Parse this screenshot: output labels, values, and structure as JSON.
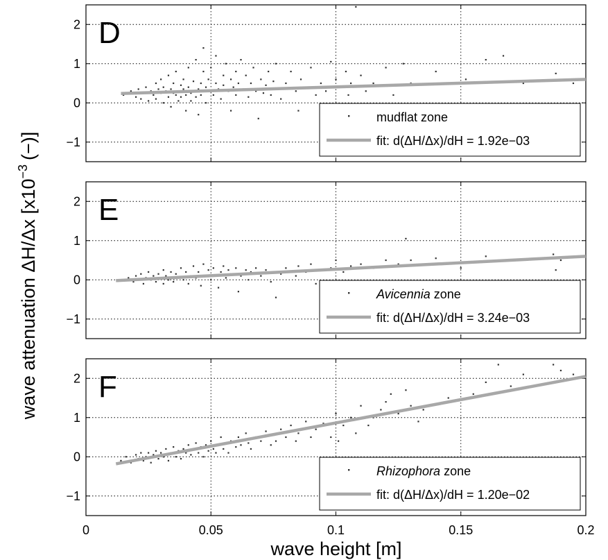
{
  "figure": {
    "ylabel": "wave attenuation  ΔH/Δx [x10",
    "ylabel_exp": "−3",
    "ylabel_unit": "(−)]",
    "xlabel": "wave height [m]"
  },
  "colors": {
    "points": "#303030",
    "fit": "#a8a8a8",
    "grid": "#000000",
    "axes": "#000000"
  },
  "chart_data": [
    {
      "type": "scatter",
      "panel_label": "D",
      "xlim": [
        0,
        0.2
      ],
      "ylim": [
        -1.5,
        2.5
      ],
      "xticks": [
        "0",
        "0.05",
        "0.1",
        "0.15",
        "0.2"
      ],
      "yticks": [
        "2",
        "1",
        "0",
        "−1"
      ],
      "grid": true,
      "legend_position": "bottom-right",
      "series": [
        {
          "name": "mudflat zone",
          "italic_part": "",
          "rest": "mudflat zone",
          "kind": "points"
        },
        {
          "name": "fit: d(ΔH/Δx)/dH = 1.92e−03",
          "kind": "line",
          "x": [
            0.014,
            0.2
          ],
          "y": [
            0.24,
            0.6
          ]
        }
      ],
      "points": [
        [
          0.015,
          0.2
        ],
        [
          0.018,
          0.3
        ],
        [
          0.02,
          0.15
        ],
        [
          0.021,
          0.35
        ],
        [
          0.022,
          0.1
        ],
        [
          0.023,
          0.25
        ],
        [
          0.024,
          0.4
        ],
        [
          0.025,
          0.05
        ],
        [
          0.026,
          0.3
        ],
        [
          0.027,
          0.2
        ],
        [
          0.028,
          0.5
        ],
        [
          0.028,
          0.1
        ],
        [
          0.029,
          0.35
        ],
        [
          0.03,
          0.25
        ],
        [
          0.03,
          0.6
        ],
        [
          0.031,
          0.0
        ],
        [
          0.031,
          0.4
        ],
        [
          0.032,
          0.3
        ],
        [
          0.033,
          0.15
        ],
        [
          0.033,
          0.7
        ],
        [
          0.034,
          0.35
        ],
        [
          0.034,
          -0.1
        ],
        [
          0.035,
          0.25
        ],
        [
          0.035,
          0.5
        ],
        [
          0.036,
          0.2
        ],
        [
          0.036,
          0.8
        ],
        [
          0.037,
          0.3
        ],
        [
          0.037,
          0.05
        ],
        [
          0.038,
          0.45
        ],
        [
          0.038,
          0.15
        ],
        [
          0.039,
          0.35
        ],
        [
          0.039,
          0.6
        ],
        [
          0.04,
          0.2
        ],
        [
          0.04,
          -0.2
        ],
        [
          0.041,
          0.4
        ],
        [
          0.041,
          0.9
        ],
        [
          0.042,
          0.25
        ],
        [
          0.042,
          0.05
        ],
        [
          0.043,
          0.55
        ],
        [
          0.043,
          0.3
        ],
        [
          0.044,
          0.15
        ],
        [
          0.044,
          1.1
        ],
        [
          0.045,
          0.35
        ],
        [
          0.045,
          -0.3
        ],
        [
          0.046,
          0.5
        ],
        [
          0.046,
          0.2
        ],
        [
          0.047,
          1.4
        ],
        [
          0.047,
          0.8
        ],
        [
          0.048,
          0.4
        ],
        [
          0.048,
          0.0
        ],
        [
          0.049,
          0.6
        ],
        [
          0.05,
          0.3
        ],
        [
          0.05,
          0.9
        ],
        [
          0.051,
          0.2
        ],
        [
          0.052,
          1.2
        ],
        [
          0.052,
          0.5
        ],
        [
          0.053,
          0.35
        ],
        [
          0.054,
          0.1
        ],
        [
          0.055,
          0.7
        ],
        [
          0.055,
          0.45
        ],
        [
          0.056,
          1.0
        ],
        [
          0.057,
          0.3
        ],
        [
          0.058,
          0.6
        ],
        [
          0.058,
          -0.2
        ],
        [
          0.059,
          0.4
        ],
        [
          0.06,
          0.8
        ],
        [
          0.06,
          0.2
        ],
        [
          0.061,
          0.5
        ],
        [
          0.062,
          1.1
        ],
        [
          0.063,
          0.35
        ],
        [
          0.064,
          0.7
        ],
        [
          0.065,
          0.15
        ],
        [
          0.066,
          0.5
        ],
        [
          0.067,
          0.9
        ],
        [
          0.068,
          0.3
        ],
        [
          0.069,
          -0.4
        ],
        [
          0.07,
          0.6
        ],
        [
          0.071,
          0.25
        ],
        [
          0.072,
          0.45
        ],
        [
          0.073,
          0.8
        ],
        [
          0.074,
          0.2
        ],
        [
          0.075,
          0.55
        ],
        [
          0.076,
          1.0
        ],
        [
          0.077,
          0.35
        ],
        [
          0.078,
          0.1
        ],
        [
          0.08,
          0.5
        ],
        [
          0.082,
          0.8
        ],
        [
          0.084,
          0.3
        ],
        [
          0.085,
          -0.2
        ],
        [
          0.086,
          0.6
        ],
        [
          0.088,
          0.4
        ],
        [
          0.09,
          0.9
        ],
        [
          0.092,
          0.2
        ],
        [
          0.094,
          0.5
        ],
        [
          0.096,
          0.3
        ],
        [
          0.098,
          1.05
        ],
        [
          0.1,
          0.6
        ],
        [
          0.102,
          0.4
        ],
        [
          0.104,
          0.8
        ],
        [
          0.105,
          0.2
        ],
        [
          0.106,
          0.5
        ],
        [
          0.108,
          2.45
        ],
        [
          0.11,
          0.7
        ],
        [
          0.112,
          0.3
        ],
        [
          0.115,
          0.5
        ],
        [
          0.12,
          0.9
        ],
        [
          0.123,
          0.2
        ],
        [
          0.127,
          1.0
        ],
        [
          0.13,
          0.5
        ],
        [
          0.14,
          0.8
        ],
        [
          0.152,
          0.6
        ],
        [
          0.16,
          1.1
        ],
        [
          0.167,
          1.2
        ],
        [
          0.175,
          0.5
        ],
        [
          0.188,
          0.75
        ],
        [
          0.195,
          0.5
        ]
      ]
    },
    {
      "type": "scatter",
      "panel_label": "E",
      "xlim": [
        0,
        0.2
      ],
      "ylim": [
        -1.5,
        2.5
      ],
      "xticks": [
        "0",
        "0.05",
        "0.1",
        "0.15",
        "0.2"
      ],
      "yticks": [
        "2",
        "1",
        "0",
        "−1"
      ],
      "grid": true,
      "legend_position": "bottom-right",
      "series": [
        {
          "name": "Avicennia zone",
          "italic_part": "Avicennia",
          "rest": " zone",
          "kind": "points"
        },
        {
          "name": "fit: d(ΔH/Δx)/dH = 3.24e−03",
          "kind": "line",
          "x": [
            0.012,
            0.2
          ],
          "y": [
            -0.02,
            0.6
          ]
        }
      ],
      "points": [
        [
          0.015,
          0.0
        ],
        [
          0.017,
          0.05
        ],
        [
          0.019,
          -0.05
        ],
        [
          0.02,
          0.1
        ],
        [
          0.021,
          0.0
        ],
        [
          0.022,
          0.15
        ],
        [
          0.023,
          -0.1
        ],
        [
          0.024,
          0.05
        ],
        [
          0.025,
          0.2
        ],
        [
          0.026,
          0.0
        ],
        [
          0.027,
          0.1
        ],
        [
          0.028,
          -0.05
        ],
        [
          0.029,
          0.15
        ],
        [
          0.03,
          0.05
        ],
        [
          0.031,
          0.25
        ],
        [
          0.031,
          -0.1
        ],
        [
          0.032,
          0.1
        ],
        [
          0.033,
          0.0
        ],
        [
          0.034,
          0.2
        ],
        [
          0.035,
          -0.05
        ],
        [
          0.036,
          0.15
        ],
        [
          0.037,
          0.05
        ],
        [
          0.038,
          0.3
        ],
        [
          0.039,
          0.0
        ],
        [
          0.04,
          0.2
        ],
        [
          0.041,
          -0.1
        ],
        [
          0.042,
          0.1
        ],
        [
          0.043,
          0.35
        ],
        [
          0.044,
          0.05
        ],
        [
          0.045,
          0.2
        ],
        [
          0.046,
          -0.15
        ],
        [
          0.047,
          0.4
        ],
        [
          0.048,
          0.1
        ],
        [
          0.049,
          0.25
        ],
        [
          0.05,
          0.0
        ],
        [
          0.051,
          0.3
        ],
        [
          0.052,
          0.1
        ],
        [
          0.053,
          -0.2
        ],
        [
          0.054,
          0.2
        ],
        [
          0.055,
          0.35
        ],
        [
          0.056,
          0.05
        ],
        [
          0.057,
          0.25
        ],
        [
          0.058,
          0.15
        ],
        [
          0.06,
          0.3
        ],
        [
          0.061,
          -0.3
        ],
        [
          0.062,
          0.1
        ],
        [
          0.064,
          0.25
        ],
        [
          0.065,
          0.0
        ],
        [
          0.066,
          0.2
        ],
        [
          0.068,
          0.3
        ],
        [
          0.07,
          0.1
        ],
        [
          0.072,
          0.25
        ],
        [
          0.074,
          -0.05
        ],
        [
          0.075,
          0.2
        ],
        [
          0.076,
          -0.45
        ],
        [
          0.078,
          0.15
        ],
        [
          0.08,
          0.3
        ],
        [
          0.082,
          0.2
        ],
        [
          0.084,
          0.1
        ],
        [
          0.085,
          0.35
        ],
        [
          0.088,
          0.2
        ],
        [
          0.09,
          0.4
        ],
        [
          0.092,
          -0.1
        ],
        [
          0.095,
          0.25
        ],
        [
          0.098,
          0.3
        ],
        [
          0.1,
          0.5
        ],
        [
          0.103,
          0.2
        ],
        [
          0.106,
          0.35
        ],
        [
          0.11,
          0.4
        ],
        [
          0.115,
          0.3
        ],
        [
          0.12,
          0.5
        ],
        [
          0.125,
          0.4
        ],
        [
          0.128,
          1.05
        ],
        [
          0.13,
          0.5
        ],
        [
          0.14,
          0.55
        ],
        [
          0.15,
          0.3
        ],
        [
          0.16,
          0.6
        ],
        [
          0.17,
          0.5
        ],
        [
          0.187,
          0.65
        ],
        [
          0.19,
          0.5
        ],
        [
          0.188,
          0.25
        ]
      ]
    },
    {
      "type": "scatter",
      "panel_label": "F",
      "xlim": [
        0,
        0.2
      ],
      "ylim": [
        -1.5,
        2.5
      ],
      "xticks": [
        "0",
        "0.05",
        "0.1",
        "0.15",
        "0.2"
      ],
      "yticks": [
        "2",
        "1",
        "0",
        "−1"
      ],
      "grid": true,
      "legend_position": "bottom-right",
      "series": [
        {
          "name": "Rhizophora zone",
          "italic_part": "Rhizophora",
          "rest": " zone",
          "kind": "points"
        },
        {
          "name": "fit: d(ΔH/Δx)/dH = 1.20e−02",
          "kind": "line",
          "x": [
            0.012,
            0.2
          ],
          "y": [
            -0.18,
            2.05
          ]
        }
      ],
      "points": [
        [
          0.014,
          -0.1
        ],
        [
          0.016,
          0.0
        ],
        [
          0.018,
          -0.15
        ],
        [
          0.02,
          0.05
        ],
        [
          0.021,
          -0.05
        ],
        [
          0.022,
          0.1
        ],
        [
          0.023,
          -0.1
        ],
        [
          0.024,
          0.0
        ],
        [
          0.025,
          0.1
        ],
        [
          0.026,
          -0.15
        ],
        [
          0.027,
          0.05
        ],
        [
          0.028,
          0.15
        ],
        [
          0.029,
          -0.05
        ],
        [
          0.03,
          0.1
        ],
        [
          0.031,
          0.0
        ],
        [
          0.032,
          0.2
        ],
        [
          0.033,
          -0.1
        ],
        [
          0.034,
          0.1
        ],
        [
          0.035,
          0.25
        ],
        [
          0.036,
          0.0
        ],
        [
          0.037,
          0.15
        ],
        [
          0.038,
          -0.05
        ],
        [
          0.039,
          0.2
        ],
        [
          0.04,
          0.1
        ],
        [
          0.041,
          0.3
        ],
        [
          0.042,
          0.05
        ],
        [
          0.043,
          0.2
        ],
        [
          0.044,
          0.35
        ],
        [
          0.045,
          0.1
        ],
        [
          0.046,
          0.25
        ],
        [
          0.047,
          0.0
        ],
        [
          0.048,
          0.3
        ],
        [
          0.049,
          0.15
        ],
        [
          0.05,
          0.4
        ],
        [
          0.051,
          0.2
        ],
        [
          0.052,
          0.1
        ],
        [
          0.053,
          0.3
        ],
        [
          0.054,
          0.5
        ],
        [
          0.055,
          0.2
        ],
        [
          0.056,
          0.35
        ],
        [
          0.057,
          0.1
        ],
        [
          0.058,
          0.4
        ],
        [
          0.06,
          0.25
        ],
        [
          0.061,
          0.5
        ],
        [
          0.062,
          0.3
        ],
        [
          0.064,
          0.6
        ],
        [
          0.065,
          0.35
        ],
        [
          0.066,
          0.2
        ],
        [
          0.068,
          0.5
        ],
        [
          0.07,
          0.4
        ],
        [
          0.072,
          0.65
        ],
        [
          0.074,
          0.3
        ],
        [
          0.075,
          0.55
        ],
        [
          0.076,
          0.4
        ],
        [
          0.078,
          0.7
        ],
        [
          0.08,
          0.5
        ],
        [
          0.082,
          0.8
        ],
        [
          0.084,
          0.4
        ],
        [
          0.085,
          0.6
        ],
        [
          0.088,
          0.9
        ],
        [
          0.09,
          0.5
        ],
        [
          0.092,
          0.7
        ],
        [
          0.095,
          0.85
        ],
        [
          0.098,
          0.5
        ],
        [
          0.1,
          1.1
        ],
        [
          0.101,
          0.4
        ],
        [
          0.103,
          0.8
        ],
        [
          0.106,
          1.0
        ],
        [
          0.108,
          0.6
        ],
        [
          0.11,
          1.3
        ],
        [
          0.113,
          0.8
        ],
        [
          0.115,
          1.0
        ],
        [
          0.118,
          1.2
        ],
        [
          0.12,
          1.4
        ],
        [
          0.122,
          1.6
        ],
        [
          0.125,
          1.1
        ],
        [
          0.128,
          1.7
        ],
        [
          0.13,
          1.3
        ],
        [
          0.133,
          0.9
        ],
        [
          0.135,
          1.2
        ],
        [
          0.145,
          1.5
        ],
        [
          0.155,
          1.6
        ],
        [
          0.16,
          1.9
        ],
        [
          0.165,
          2.35
        ],
        [
          0.17,
          1.8
        ],
        [
          0.175,
          2.1
        ],
        [
          0.187,
          2.35
        ],
        [
          0.19,
          2.2
        ],
        [
          0.195,
          2.1
        ]
      ]
    }
  ]
}
